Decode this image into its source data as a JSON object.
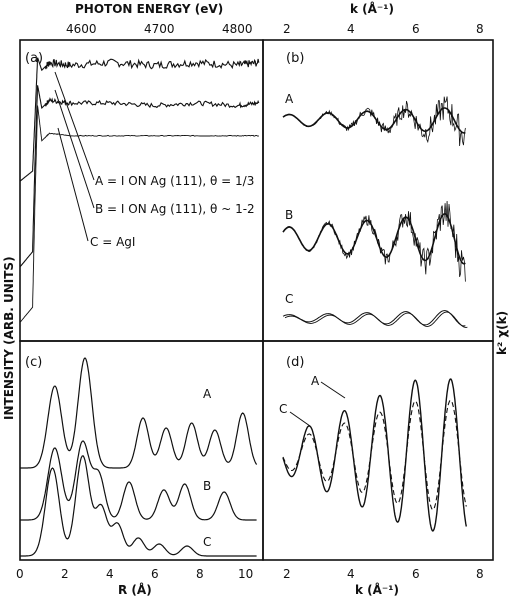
{
  "figure": {
    "top_axis_left": "PHOTON ENERGY (eV)",
    "top_axis_right": "k (Å⁻¹)",
    "y_label_left": "INTENSITY (ARB. UNITS)",
    "y_label_right": "k² χ(k)",
    "bottom_axis_left": "R (Å)",
    "bottom_axis_right": "k (Å⁻¹)"
  },
  "legend_a": {
    "A": "A = I ON Ag (111), θ = 1/3",
    "B": "B = I ON Ag (111), θ ~ 1-2",
    "C": "C = AgI"
  },
  "chart_data": [
    {
      "panel": "(a)",
      "type": "line",
      "x_unit": "eV",
      "xlim": [
        4540,
        4830
      ],
      "x_ticks": [
        "4600",
        "4700",
        "4800"
      ],
      "series": [
        {
          "name": "A",
          "x": [
            4540,
            4555,
            4558,
            4561,
            4566,
            4575,
            4600,
            4650,
            4700,
            4750,
            4800,
            4825
          ],
          "y": [
            0.46,
            0.5,
            0.72,
            0.95,
            0.9,
            0.93,
            0.92,
            0.93,
            0.92,
            0.93,
            0.92,
            0.93
          ]
        },
        {
          "name": "B",
          "x": [
            4540,
            4555,
            4558,
            4561,
            4566,
            4575,
            4600,
            4650,
            4700,
            4750,
            4800,
            4825
          ],
          "y": [
            0.12,
            0.18,
            0.55,
            0.84,
            0.75,
            0.78,
            0.77,
            0.77,
            0.76,
            0.77,
            0.76,
            0.77
          ]
        },
        {
          "name": "C",
          "x": [
            4540,
            4555,
            4558,
            4561,
            4566,
            4575,
            4600,
            4650,
            4700,
            4750,
            4800,
            4825
          ],
          "y": [
            -0.1,
            -0.04,
            0.4,
            0.76,
            0.62,
            0.65,
            0.64,
            0.64,
            0.64,
            0.64,
            0.64,
            0.64
          ]
        }
      ]
    },
    {
      "panel": "(b)",
      "type": "line",
      "xlim": [
        2,
        8
      ],
      "x_ticks": [
        "2",
        "4",
        "6",
        "8"
      ],
      "series": [
        {
          "name": "A",
          "description": "noisy experimental trace with smooth fit, oscillation period ~1.2 Å⁻¹"
        },
        {
          "name": "B",
          "description": "noisy experimental trace with smooth fit, larger amplitude"
        },
        {
          "name": "C",
          "description": "smooth oscillations, small amplitude"
        }
      ]
    },
    {
      "panel": "(c)",
      "type": "line",
      "xlim": [
        0,
        10
      ],
      "x_ticks": [
        "0",
        "2",
        "4",
        "6",
        "8",
        "10"
      ],
      "series": [
        {
          "name": "A",
          "peaks_x": [
            1.5,
            2.8,
            5.3,
            6.3,
            7.4,
            8.4,
            9.6
          ]
        },
        {
          "name": "B",
          "peaks_x": [
            1.5,
            2.7,
            3.4,
            4.7,
            6.2,
            7.1,
            8.8
          ]
        },
        {
          "name": "C",
          "peaks_x": [
            1.4,
            2.7,
            3.5,
            4.2,
            5.1,
            6.0,
            7.2
          ]
        }
      ]
    },
    {
      "panel": "(d)",
      "type": "line",
      "xlim": [
        2,
        8
      ],
      "x_ticks": [
        "2",
        "4",
        "6",
        "8"
      ],
      "series": [
        {
          "name": "A",
          "style": "solid",
          "peaks_k": [
            2.8,
            4.1,
            5.2,
            6.3,
            7.4
          ]
        },
        {
          "name": "C",
          "style": "dashed",
          "peaks_k": [
            2.8,
            4.1,
            5.2,
            6.3,
            7.4
          ]
        }
      ]
    }
  ],
  "panel_labels": {
    "a": "(a)",
    "b": "(b)",
    "c": "(c)",
    "d": "(d)"
  },
  "curve_labels": {
    "b": [
      "A",
      "B",
      "C"
    ],
    "c": [
      "A",
      "B",
      "C"
    ],
    "d": [
      "A",
      "C"
    ]
  },
  "ticks": {
    "energy": [
      "4600",
      "4700",
      "4800"
    ],
    "k_top": [
      "2",
      "4",
      "6",
      "8"
    ],
    "r": [
      "0",
      "2",
      "4",
      "6",
      "8",
      "10"
    ],
    "k_bottom": [
      "2",
      "4",
      "6",
      "8"
    ]
  }
}
